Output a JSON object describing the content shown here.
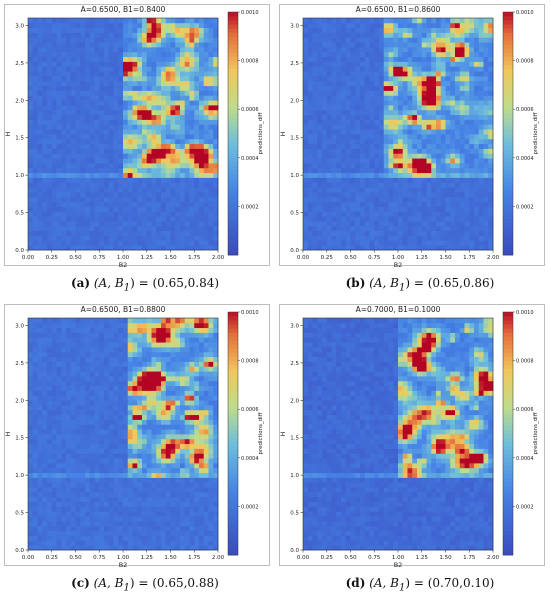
{
  "chart_data": [
    {
      "type": "heatmap",
      "title": "A=0.6500, B1=0.8400",
      "xlabel": "B2",
      "ylabel": "H",
      "xticks": [
        "0.00",
        "0.25",
        "0.50",
        "0.75",
        "1.00",
        "1.25",
        "1.50",
        "1.75",
        "2.00"
      ],
      "yticks": [
        "0.0",
        "0.5",
        "1.0",
        "1.5",
        "2.0",
        "2.5",
        "3.0"
      ],
      "xlim": [
        0,
        2
      ],
      "ylim": [
        0,
        3.1
      ],
      "colorbar": {
        "label": "predictions_diff",
        "ticks": [
          "0.0010",
          "0.0008",
          "0.0006",
          "0.0004",
          "0.0002"
        ],
        "range": [
          0,
          0.001
        ]
      },
      "caption": {
        "tag": "(a)",
        "math": "(A, B",
        "sub": "1",
        "rest": ") = (0.65,0.84)"
      },
      "noise": {
        "base": 0.12,
        "inner": 0.35,
        "innerX": [
          1.0,
          2.0
        ],
        "innerY": [
          1.0,
          3.1
        ],
        "seed": 11
      }
    },
    {
      "type": "heatmap",
      "title": "A=0.6500, B1=0.8600",
      "xlabel": "B2",
      "ylabel": "H",
      "xticks": [
        "0.00",
        "0.25",
        "0.50",
        "0.75",
        "1.00",
        "1.25",
        "1.50",
        "1.75",
        "2.00"
      ],
      "yticks": [
        "0.0",
        "0.5",
        "1.0",
        "1.5",
        "2.0",
        "2.5",
        "3.0"
      ],
      "xlim": [
        0,
        2
      ],
      "ylim": [
        0,
        3.1
      ],
      "colorbar": {
        "label": "predictions_diff",
        "ticks": [
          "0.0010",
          "0.0008",
          "0.0006",
          "0.0004",
          "0.0002"
        ],
        "range": [
          0,
          0.001
        ]
      },
      "caption": {
        "tag": "(b)",
        "math": "(A, B",
        "sub": "1",
        "rest": ") = (0.65,0.86)"
      },
      "noise": {
        "base": 0.12,
        "inner": 0.35,
        "innerX": [
          0.85,
          2.0
        ],
        "innerY": [
          1.0,
          3.1
        ],
        "seed": 23
      }
    },
    {
      "type": "heatmap",
      "title": "A=0.6500, B1=0.8800",
      "xlabel": "B2",
      "ylabel": "H",
      "xticks": [
        "0.00",
        "0.25",
        "0.50",
        "0.75",
        "1.00",
        "1.25",
        "1.50",
        "1.75",
        "2.00"
      ],
      "yticks": [
        "0.0",
        "0.5",
        "1.0",
        "1.5",
        "2.0",
        "2.5",
        "3.0"
      ],
      "xlim": [
        0,
        2
      ],
      "ylim": [
        0,
        3.1
      ],
      "colorbar": {
        "label": "predictions_diff",
        "ticks": [
          "0.0010",
          "0.0008",
          "0.0006",
          "0.0004",
          "0.0002"
        ],
        "range": [
          0,
          0.001
        ]
      },
      "caption": {
        "tag": "(c)",
        "math": "(A, B",
        "sub": "1",
        "rest": ") = (0.65,0.88)"
      },
      "noise": {
        "base": 0.13,
        "inner": 0.38,
        "innerX": [
          1.05,
          2.0
        ],
        "innerY": [
          1.0,
          3.1
        ],
        "seed": 37
      }
    },
    {
      "type": "heatmap",
      "title": "A=0.7000, B1=0.1000",
      "xlabel": "B2",
      "ylabel": "H",
      "xticks": [
        "0.00",
        "0.25",
        "0.50",
        "0.75",
        "1.00",
        "1.25",
        "1.50",
        "1.75",
        "2.00"
      ],
      "yticks": [
        "0.0",
        "0.5",
        "1.0",
        "1.5",
        "2.0",
        "2.5",
        "3.0"
      ],
      "xlim": [
        0,
        2
      ],
      "ylim": [
        0,
        3.1
      ],
      "colorbar": {
        "label": "predictions_diff",
        "ticks": [
          "0.0010",
          "0.0008",
          "0.0006",
          "0.0004",
          "0.0002"
        ],
        "range": [
          0,
          0.001
        ]
      },
      "caption": {
        "tag": "(d)",
        "math": "(A, B",
        "sub": "1",
        "rest": ") = (0.70,0.10)"
      },
      "noise": {
        "base": 0.1,
        "inner": 0.4,
        "innerX": [
          1.0,
          2.0
        ],
        "innerY": [
          1.0,
          3.1
        ],
        "seed": 53
      }
    }
  ]
}
